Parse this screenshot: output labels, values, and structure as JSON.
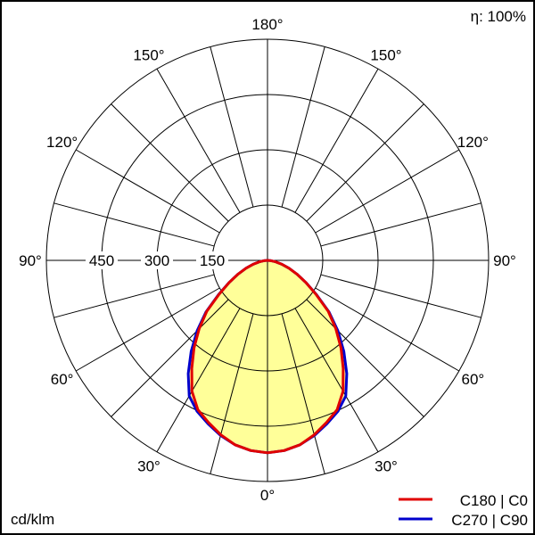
{
  "chart_data": {
    "type": "polar",
    "unit_label": "cd/klm",
    "efficiency_label": "η: 100%",
    "radial_ticks": [
      150,
      300,
      450
    ],
    "radial_max": 600,
    "angle_labels": [
      "180°",
      "150°",
      "120°",
      "90°",
      "60°",
      "30°",
      "0°"
    ],
    "angle_label_values": [
      180,
      150,
      120,
      90,
      60,
      30,
      0
    ],
    "gamma": [
      0,
      5,
      10,
      15,
      20,
      25,
      30,
      35,
      40,
      45,
      50,
      55,
      60,
      65,
      70,
      75,
      80,
      85,
      90,
      180
    ],
    "series": [
      {
        "name": "C180 | C0",
        "color": "#e00000",
        "values": [
          522,
          518,
          508,
          490,
          468,
          447,
          410,
          358,
          310,
          262,
          215,
          160,
          120,
          88,
          62,
          40,
          22,
          10,
          0,
          0
        ]
      },
      {
        "name": "C270 | C90",
        "color": "#0000cc",
        "values": [
          522,
          518,
          508,
          492,
          472,
          452,
          425,
          375,
          322,
          270,
          218,
          162,
          120,
          88,
          62,
          40,
          22,
          10,
          0,
          0
        ]
      }
    ],
    "fill_color": "#ffff99",
    "grid": true,
    "legend_position": "bottom-right"
  }
}
